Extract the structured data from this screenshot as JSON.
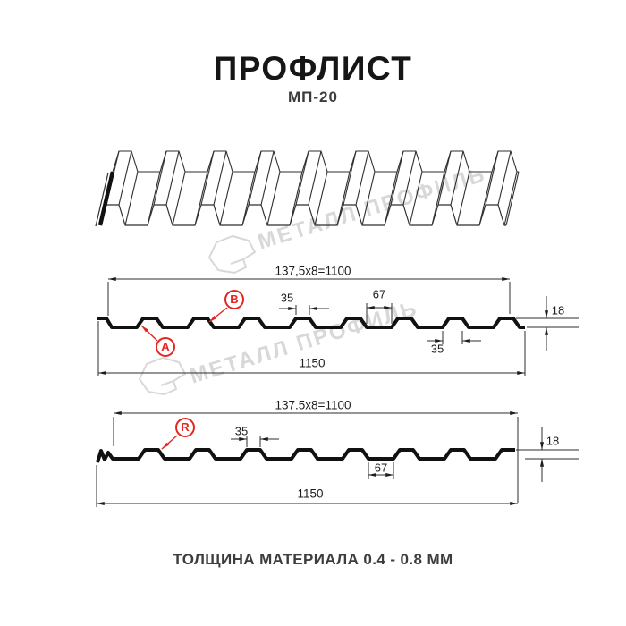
{
  "title": "ПРОФЛИСТ",
  "subtitle": "МП-20",
  "footer": "ТОЛЩИНА МАТЕРИАЛА 0.4 - 0.8 ММ",
  "watermark": {
    "text": "МЕТАЛЛ ПРОФИЛЬ"
  },
  "colors": {
    "accent_red": "#e42620",
    "line": "#111111",
    "thin_line": "#2e2e2e",
    "dim_text": "#1c1c1c",
    "watermark": "#d8d8d8"
  },
  "section1": {
    "top_dim": "137,5x8=1100",
    "crest_dim": "35",
    "valley_dim": "67",
    "height_dim": "18",
    "rib_base_dim": "35",
    "width_dim": "1150",
    "labels": {
      "a": "А",
      "b": "В"
    }
  },
  "section2": {
    "top_dim": "137.5x8=1100",
    "crest_dim": "35",
    "valley_dim": "67",
    "height_dim": "18",
    "width_dim": "1150",
    "labels": {
      "r": "R"
    }
  }
}
